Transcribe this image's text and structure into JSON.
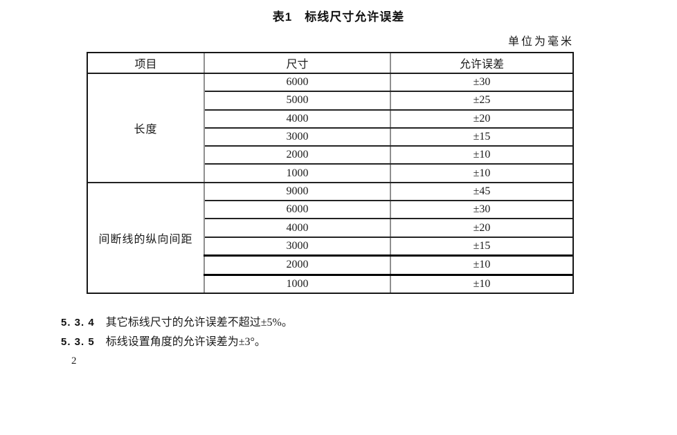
{
  "page": {
    "title": "表1　标线尺寸允许误差",
    "unit_note": "单位为毫米",
    "page_number": "2"
  },
  "table": {
    "headers": [
      "项目",
      "尺寸",
      "允许误差"
    ],
    "groups": [
      {
        "item": "长度",
        "rows": [
          {
            "size": "6000",
            "tolerance": "±30"
          },
          {
            "size": "5000",
            "tolerance": "±25"
          },
          {
            "size": "4000",
            "tolerance": "±20"
          },
          {
            "size": "3000",
            "tolerance": "±15"
          },
          {
            "size": "2000",
            "tolerance": "±10"
          },
          {
            "size": "1000",
            "tolerance": "±10"
          }
        ]
      },
      {
        "item": "间断线的纵向间距",
        "rows": [
          {
            "size": "9000",
            "tolerance": "±45"
          },
          {
            "size": "6000",
            "tolerance": "±30"
          },
          {
            "size": "4000",
            "tolerance": "±20"
          },
          {
            "size": "3000",
            "tolerance": "±15"
          },
          {
            "size": "2000",
            "tolerance": "±10"
          },
          {
            "size": "1000",
            "tolerance": "±10"
          }
        ]
      }
    ]
  },
  "clauses": [
    {
      "number": "5. 3. 4",
      "text": "其它标线尺寸的允许误差不超过±5%。"
    },
    {
      "number": "5. 3. 5",
      "text": "标线设置角度的允许误差为±3°。"
    }
  ]
}
